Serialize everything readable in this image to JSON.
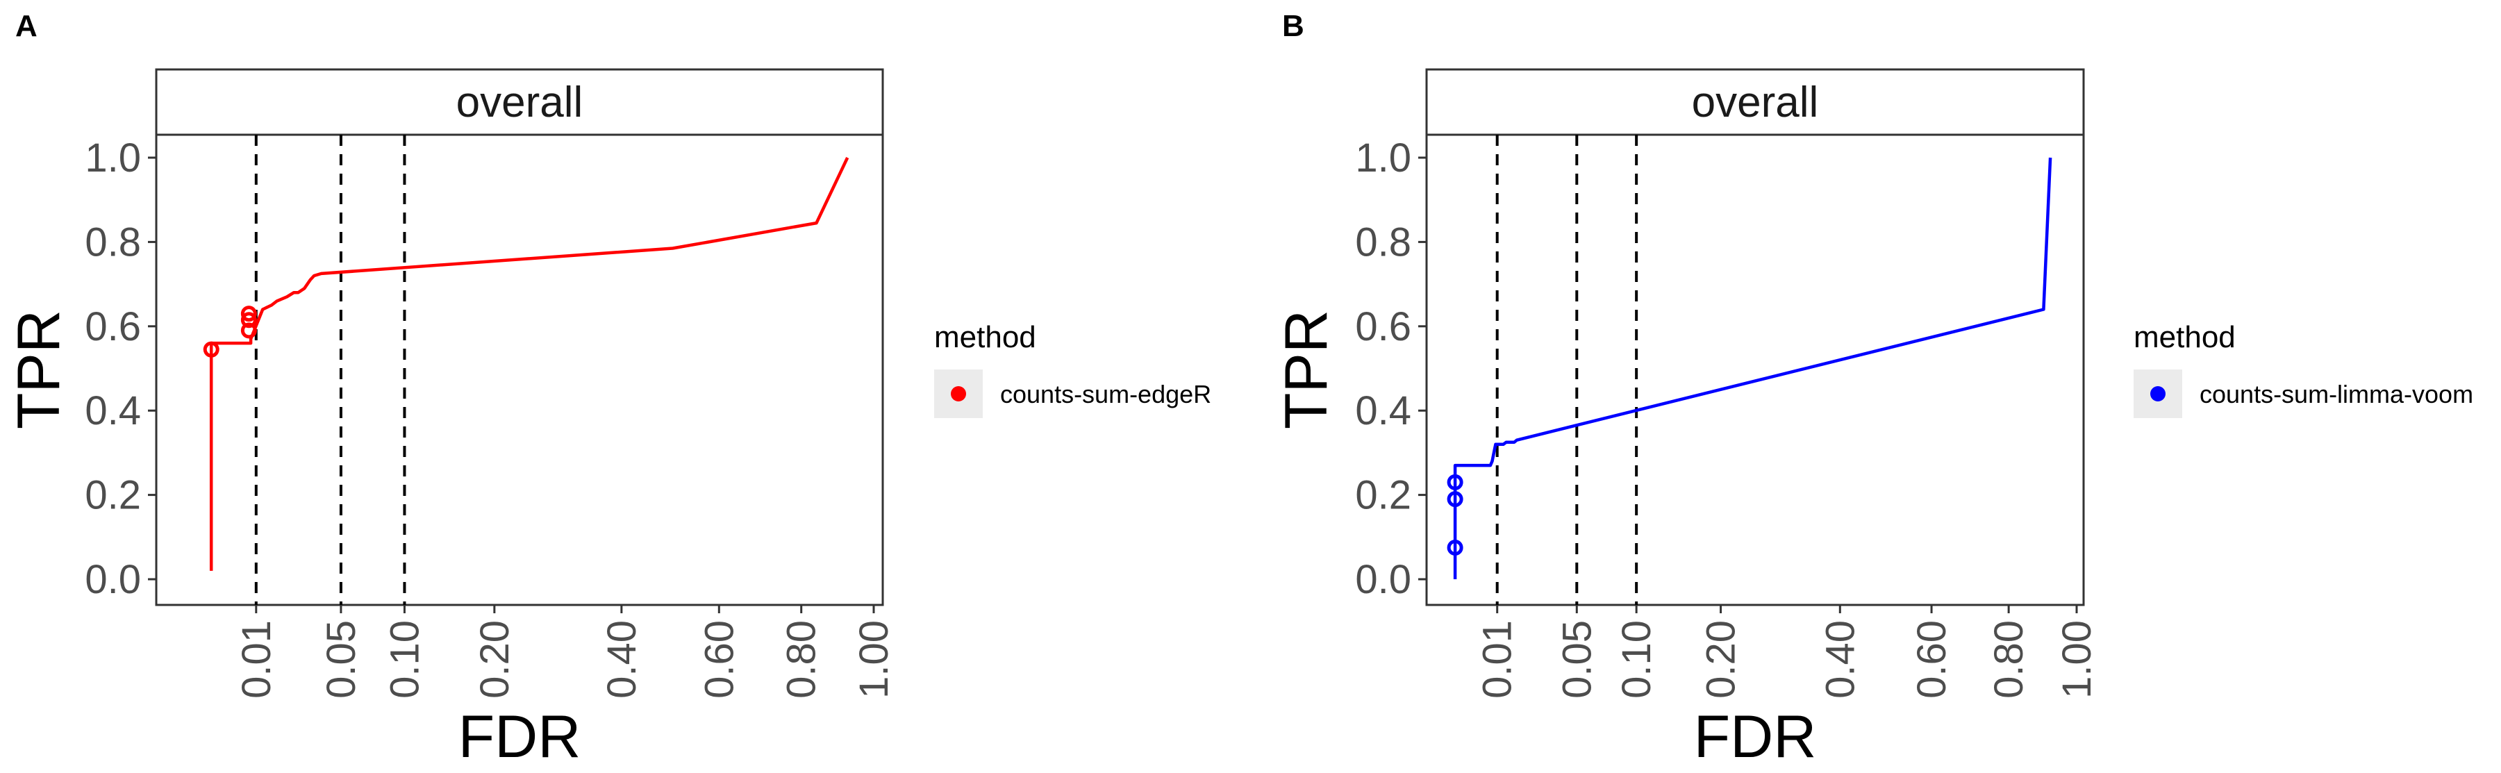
{
  "chart_data": [
    {
      "panel": "A",
      "type": "line",
      "strip": "overall",
      "xlabel": "FDR",
      "ylabel": "TPR",
      "x_ticks": [
        0.01,
        0.05,
        0.1,
        0.2,
        0.4,
        0.6,
        0.8,
        1.0
      ],
      "x_tick_labels": [
        "0.01",
        "0.05",
        "0.10",
        "0.20",
        "0.40",
        "0.60",
        "0.80",
        "1.00"
      ],
      "x_scale": "sqrt",
      "xlim": [
        0,
        1
      ],
      "y_ticks": [
        0.0,
        0.2,
        0.4,
        0.6,
        0.8,
        1.0
      ],
      "y_tick_labels": [
        "0.0",
        "0.2",
        "0.4",
        "0.6",
        "0.8",
        "1.0"
      ],
      "ylim": [
        0,
        1
      ],
      "fdr_thresholds": [
        0.01,
        0.05,
        0.1
      ],
      "legend_title": "method",
      "series": [
        {
          "name": "counts-sum-edgeR",
          "color": "#ff0000",
          "line": [
            [
              0.0012,
              0.02
            ],
            [
              0.0012,
              0.56
            ],
            [
              0.0085,
              0.56
            ],
            [
              0.0085,
              0.57
            ],
            [
              0.012,
              0.64
            ],
            [
              0.015,
              0.65
            ],
            [
              0.017,
              0.66
            ],
            [
              0.021,
              0.67
            ],
            [
              0.024,
              0.68
            ],
            [
              0.026,
              0.68
            ],
            [
              0.029,
              0.69
            ],
            [
              0.032,
              0.71
            ],
            [
              0.034,
              0.72
            ],
            [
              0.038,
              0.725
            ],
            [
              0.5,
              0.785
            ],
            [
              0.84,
              0.845
            ],
            [
              0.925,
              1.0
            ]
          ],
          "points": [
            [
              0.0012,
              0.545
            ],
            [
              0.008,
              0.59
            ],
            [
              0.008,
              0.615
            ],
            [
              0.008,
              0.63
            ]
          ]
        }
      ]
    },
    {
      "panel": "B",
      "type": "line",
      "strip": "overall",
      "xlabel": "FDR",
      "ylabel": "TPR",
      "x_ticks": [
        0.01,
        0.05,
        0.1,
        0.2,
        0.4,
        0.6,
        0.8,
        1.0
      ],
      "x_tick_labels": [
        "0.01",
        "0.05",
        "0.10",
        "0.20",
        "0.40",
        "0.60",
        "0.80",
        "1.00"
      ],
      "x_scale": "sqrt",
      "xlim": [
        0,
        1
      ],
      "y_ticks": [
        0.0,
        0.2,
        0.4,
        0.6,
        0.8,
        1.0
      ],
      "y_tick_labels": [
        "0.0",
        "0.2",
        "0.4",
        "0.6",
        "0.8",
        "1.0"
      ],
      "ylim": [
        0,
        1
      ],
      "fdr_thresholds": [
        0.01,
        0.05,
        0.1
      ],
      "legend_title": "method",
      "series": [
        {
          "name": "counts-sum-limma-voom",
          "color": "#0000ff",
          "line": [
            [
              0.0012,
              0.0
            ],
            [
              0.0012,
              0.27
            ],
            [
              0.008,
              0.27
            ],
            [
              0.0085,
              0.28
            ],
            [
              0.009,
              0.3
            ],
            [
              0.0095,
              0.32
            ],
            [
              0.012,
              0.32
            ],
            [
              0.013,
              0.325
            ],
            [
              0.016,
              0.325
            ],
            [
              0.017,
              0.33
            ],
            [
              0.9,
              0.64
            ],
            [
              0.92,
              1.0
            ]
          ],
          "points": [
            [
              0.0012,
              0.075
            ],
            [
              0.0012,
              0.19
            ],
            [
              0.0012,
              0.23
            ]
          ]
        }
      ]
    }
  ]
}
